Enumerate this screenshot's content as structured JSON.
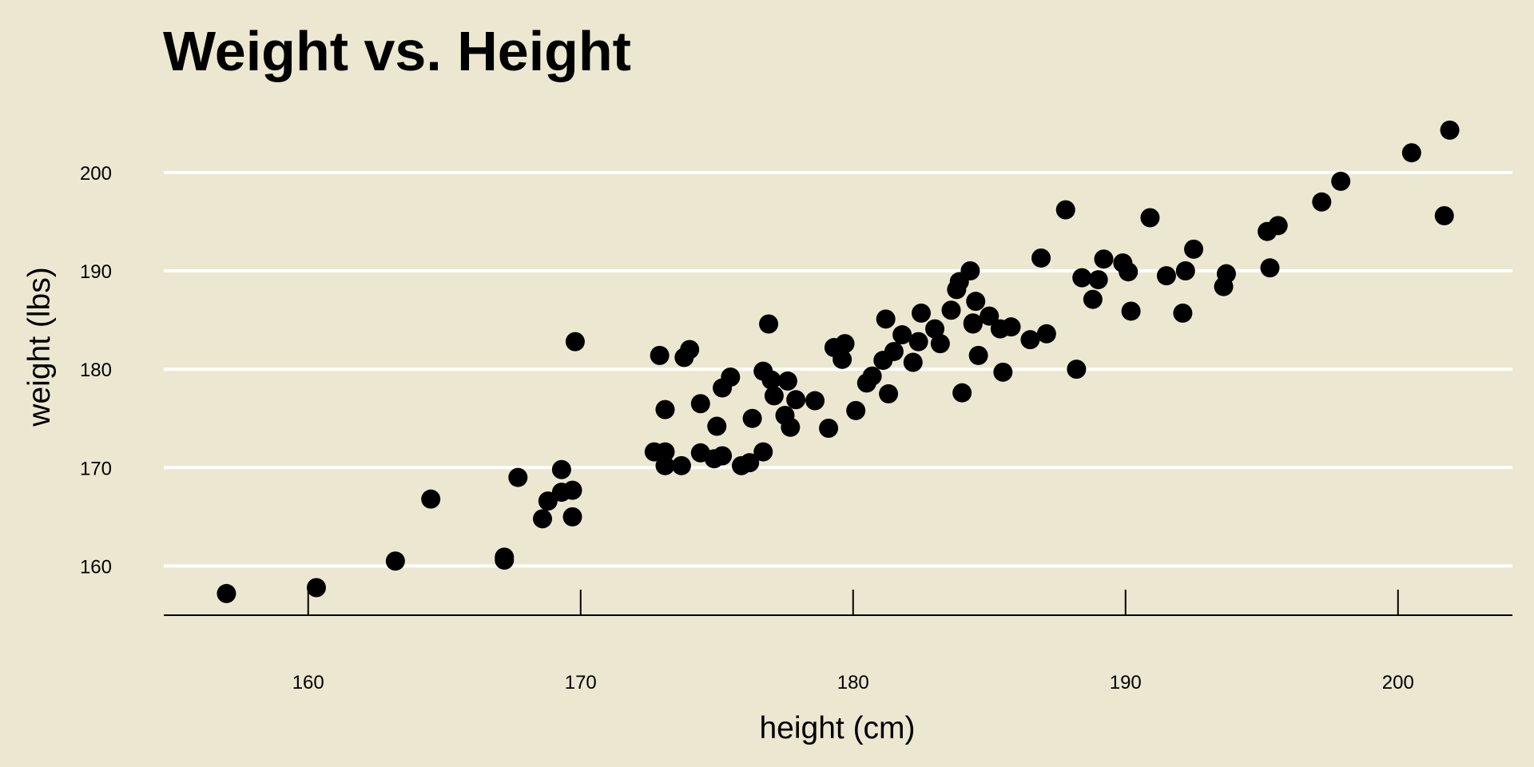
{
  "chart_data": {
    "type": "scatter",
    "title": "Weight vs. Height",
    "xlabel": "height (cm)",
    "ylabel": "weight (lbs)",
    "xlim": [
      154.7,
      204.2
    ],
    "ylim": [
      155,
      209
    ],
    "xticks": [
      160,
      170,
      180,
      190,
      200
    ],
    "yticks": [
      160,
      170,
      180,
      190,
      200
    ],
    "grid": "horizontal",
    "background_color": "#ece7d1",
    "point_color": "#000000",
    "series": [
      {
        "points": [
          [
            157.0,
            157.2
          ],
          [
            160.3,
            157.8
          ],
          [
            163.2,
            160.5
          ],
          [
            164.5,
            166.8
          ],
          [
            167.2,
            160.9
          ],
          [
            167.2,
            160.6
          ],
          [
            167.7,
            169.0
          ],
          [
            168.6,
            164.8
          ],
          [
            168.8,
            166.6
          ],
          [
            169.3,
            169.8
          ],
          [
            169.3,
            167.5
          ],
          [
            169.7,
            167.7
          ],
          [
            169.7,
            165.0
          ],
          [
            169.8,
            182.8
          ],
          [
            172.7,
            171.6
          ],
          [
            172.9,
            181.4
          ],
          [
            173.1,
            175.9
          ],
          [
            173.1,
            171.6
          ],
          [
            173.1,
            170.2
          ],
          [
            173.7,
            170.2
          ],
          [
            173.8,
            181.2
          ],
          [
            174.0,
            182.0
          ],
          [
            174.4,
            171.5
          ],
          [
            174.4,
            176.5
          ],
          [
            174.9,
            170.9
          ],
          [
            175.0,
            174.2
          ],
          [
            175.2,
            171.2
          ],
          [
            175.2,
            178.1
          ],
          [
            175.5,
            179.2
          ],
          [
            175.9,
            170.2
          ],
          [
            176.2,
            170.5
          ],
          [
            176.3,
            175.0
          ],
          [
            176.7,
            171.6
          ],
          [
            176.7,
            179.8
          ],
          [
            176.9,
            184.6
          ],
          [
            177.0,
            178.9
          ],
          [
            177.1,
            177.3
          ],
          [
            177.5,
            175.3
          ],
          [
            177.6,
            178.8
          ],
          [
            177.7,
            174.1
          ],
          [
            177.9,
            176.9
          ],
          [
            178.6,
            176.8
          ],
          [
            179.1,
            174.0
          ],
          [
            179.3,
            182.2
          ],
          [
            179.6,
            181.0
          ],
          [
            179.7,
            182.6
          ],
          [
            180.1,
            175.8
          ],
          [
            180.5,
            178.6
          ],
          [
            180.7,
            179.3
          ],
          [
            181.1,
            180.9
          ],
          [
            181.2,
            185.1
          ],
          [
            181.3,
            177.5
          ],
          [
            181.5,
            181.8
          ],
          [
            181.8,
            183.5
          ],
          [
            182.2,
            180.7
          ],
          [
            182.4,
            182.8
          ],
          [
            182.5,
            185.7
          ],
          [
            183.0,
            184.1
          ],
          [
            183.2,
            182.6
          ],
          [
            183.6,
            186.0
          ],
          [
            183.8,
            188.1
          ],
          [
            183.9,
            188.9
          ],
          [
            184.0,
            177.6
          ],
          [
            184.3,
            190.0
          ],
          [
            184.4,
            184.7
          ],
          [
            184.4,
            184.6
          ],
          [
            184.5,
            186.9
          ],
          [
            184.6,
            181.4
          ],
          [
            185.0,
            185.4
          ],
          [
            185.4,
            184.1
          ],
          [
            185.5,
            179.7
          ],
          [
            185.8,
            184.3
          ],
          [
            186.5,
            183.0
          ],
          [
            186.9,
            191.3
          ],
          [
            187.1,
            183.6
          ],
          [
            187.8,
            196.2
          ],
          [
            188.2,
            180.0
          ],
          [
            188.4,
            189.3
          ],
          [
            188.8,
            187.1
          ],
          [
            189.0,
            189.1
          ],
          [
            189.2,
            191.2
          ],
          [
            189.9,
            190.8
          ],
          [
            190.1,
            189.9
          ],
          [
            190.2,
            185.9
          ],
          [
            190.9,
            195.4
          ],
          [
            191.5,
            189.5
          ],
          [
            192.1,
            185.7
          ],
          [
            192.2,
            190.0
          ],
          [
            192.5,
            192.2
          ],
          [
            193.6,
            188.4
          ],
          [
            193.7,
            189.7
          ],
          [
            195.2,
            194.0
          ],
          [
            195.3,
            190.3
          ],
          [
            195.6,
            194.6
          ],
          [
            197.2,
            197.0
          ],
          [
            197.9,
            199.1
          ],
          [
            200.5,
            202.0
          ],
          [
            201.7,
            195.6
          ],
          [
            201.9,
            204.3
          ]
        ]
      }
    ]
  }
}
